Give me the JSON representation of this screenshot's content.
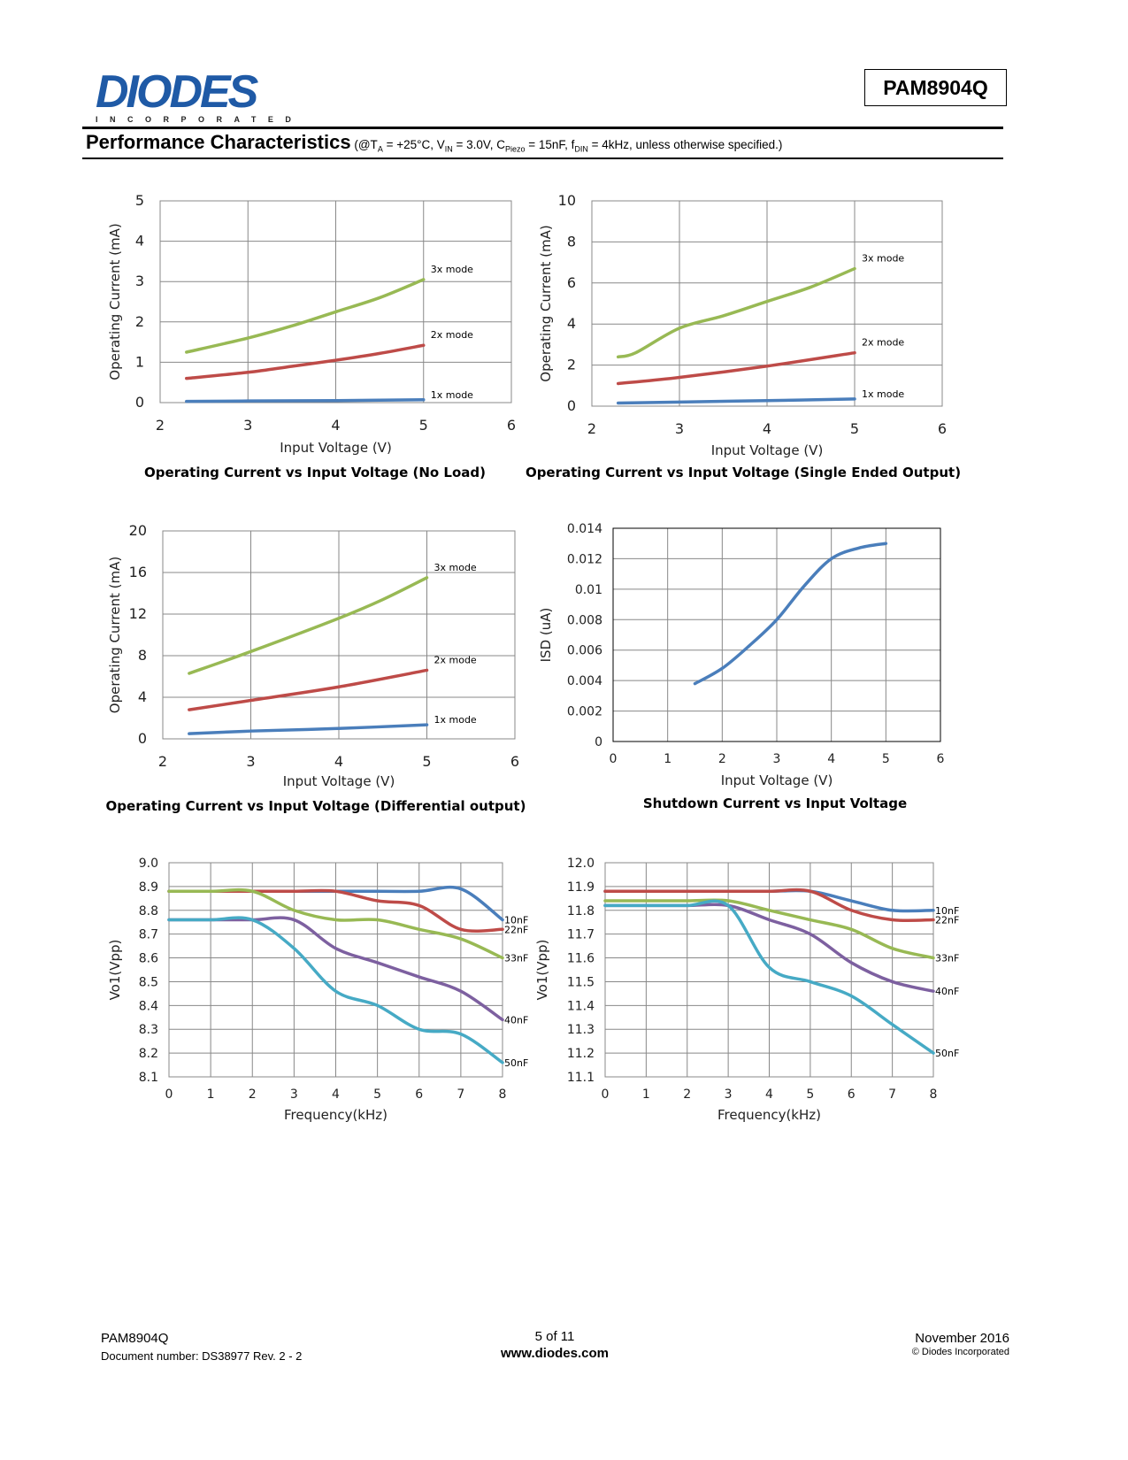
{
  "header": {
    "logo_text": "DIODES",
    "logo_subtext": "INCORPORATED",
    "part_number": "PAM8904Q",
    "section_title": "Performance Characteristics",
    "conditions": {
      "open": "(@T",
      "ta_sub": "A",
      "ta": " = +25°C, V",
      "vin_sub": "IN",
      "vin": " = 3.0V, C",
      "c_sub": "Piezo",
      "c": " = 15nF, f",
      "f_sub": "DIN",
      "f": " = 4kHz, unless otherwise specified.)"
    }
  },
  "colors": {
    "blue": "#4a7ebb",
    "red": "#be4b48",
    "green": "#98b954",
    "purple": "#7d60a0",
    "cyan": "#46aac5",
    "grid": "#888888"
  },
  "chart_data": [
    {
      "type": "line",
      "title": "Operating Current vs Input Voltage (No Load)",
      "xlabel": "Input Voltage (V)",
      "ylabel": "Operating Current (mA)",
      "xlim": [
        2,
        6
      ],
      "ylim": [
        0,
        5
      ],
      "xticks": [
        "2",
        "3",
        "4",
        "5",
        "6"
      ],
      "yticks": [
        "0",
        "1",
        "2",
        "3",
        "4",
        "5"
      ],
      "grid": true,
      "series": [
        {
          "name": "1x mode",
          "color": "#4a7ebb",
          "x": [
            2.3,
            3,
            4,
            5
          ],
          "y": [
            0.03,
            0.04,
            0.05,
            0.07
          ]
        },
        {
          "name": "2x mode",
          "color": "#be4b48",
          "x": [
            2.3,
            3,
            3.5,
            4,
            4.5,
            5
          ],
          "y": [
            0.6,
            0.75,
            0.9,
            1.05,
            1.22,
            1.42
          ]
        },
        {
          "name": "3x mode",
          "color": "#98b954",
          "x": [
            2.3,
            3,
            3.5,
            4,
            4.5,
            5
          ],
          "y": [
            1.25,
            1.6,
            1.9,
            2.25,
            2.6,
            3.05
          ]
        }
      ]
    },
    {
      "type": "line",
      "title": "Operating Current vs Input Voltage (Single Ended Output)",
      "xlabel": "Input Voltage (V)",
      "ylabel": "Operating Current (mA)",
      "xlim": [
        2,
        6
      ],
      "ylim": [
        0,
        10
      ],
      "xticks": [
        "2",
        "3",
        "4",
        "5",
        "6"
      ],
      "yticks": [
        "0",
        "2",
        "4",
        "6",
        "8",
        "10"
      ],
      "grid": true,
      "series": [
        {
          "name": "1x mode",
          "color": "#4a7ebb",
          "x": [
            2.3,
            3,
            4,
            5
          ],
          "y": [
            0.15,
            0.2,
            0.27,
            0.35
          ]
        },
        {
          "name": "2x mode",
          "color": "#be4b48",
          "x": [
            2.3,
            3,
            4,
            5
          ],
          "y": [
            1.1,
            1.4,
            1.95,
            2.6
          ]
        },
        {
          "name": "3x mode",
          "color": "#98b954",
          "x": [
            2.3,
            2.5,
            3,
            3.5,
            4,
            4.5,
            5
          ],
          "y": [
            2.4,
            2.6,
            3.8,
            4.4,
            5.1,
            5.8,
            6.7
          ]
        }
      ]
    },
    {
      "type": "line",
      "title": "Operating Current vs Input Voltage (Differential output)",
      "xlabel": "Input Voltage (V)",
      "ylabel": "Operating Current (mA)",
      "xlim": [
        2,
        6
      ],
      "ylim": [
        0,
        20
      ],
      "xticks": [
        "2",
        "3",
        "4",
        "5",
        "6"
      ],
      "yticks": [
        "0",
        "4",
        "8",
        "12",
        "16",
        "20"
      ],
      "grid": true,
      "series": [
        {
          "name": "1x mode",
          "color": "#4a7ebb",
          "x": [
            2.3,
            3,
            4,
            5
          ],
          "y": [
            0.5,
            0.75,
            1.0,
            1.35
          ]
        },
        {
          "name": "2x mode",
          "color": "#be4b48",
          "x": [
            2.3,
            3,
            4,
            5
          ],
          "y": [
            2.8,
            3.7,
            5.0,
            6.6
          ]
        },
        {
          "name": "3x mode",
          "color": "#98b954",
          "x": [
            2.3,
            3,
            4,
            4.5,
            5
          ],
          "y": [
            6.3,
            8.4,
            11.6,
            13.4,
            15.5
          ]
        }
      ]
    },
    {
      "type": "line",
      "title": "Shutdown Current vs Input Voltage",
      "xlabel": "Input Voltage (V)",
      "ylabel": "ISD (uA)",
      "xlim": [
        0,
        6
      ],
      "ylim": [
        0,
        0.014
      ],
      "xticks": [
        "0",
        "1",
        "2",
        "3",
        "4",
        "5",
        "6"
      ],
      "yticks": [
        "0",
        "0.002",
        "0.004",
        "0.006",
        "0.008",
        "0.01",
        "0.012",
        "0.014"
      ],
      "grid": true,
      "series": [
        {
          "color": "#4a7ebb",
          "x": [
            1.5,
            2,
            2.5,
            3,
            3.5,
            4,
            4.5,
            5
          ],
          "y": [
            0.0038,
            0.0048,
            0.0063,
            0.008,
            0.0102,
            0.012,
            0.0127,
            0.013
          ]
        }
      ]
    },
    {
      "type": "line",
      "title": "",
      "xlabel": "Frequency(kHz)",
      "ylabel": "Vo1(Vpp)",
      "xlim": [
        0,
        8
      ],
      "ylim": [
        8.1,
        9.0
      ],
      "xticks": [
        "0",
        "1",
        "2",
        "3",
        "4",
        "5",
        "6",
        "7",
        "8"
      ],
      "yticks": [
        "8.1",
        "8.2",
        "8.3",
        "8.4",
        "8.5",
        "8.6",
        "8.7",
        "8.8",
        "8.9",
        "9.0"
      ],
      "grid": true,
      "series": [
        {
          "name": "10nF",
          "color": "#4a7ebb",
          "x": [
            0,
            1,
            2,
            3,
            4,
            5,
            6,
            7,
            8
          ],
          "y": [
            8.88,
            8.88,
            8.88,
            8.88,
            8.88,
            8.88,
            8.88,
            8.89,
            8.76
          ]
        },
        {
          "name": "22nF",
          "color": "#be4b48",
          "x": [
            0,
            1,
            2,
            3,
            4,
            5,
            6,
            7,
            8
          ],
          "y": [
            8.88,
            8.88,
            8.88,
            8.88,
            8.88,
            8.84,
            8.82,
            8.72,
            8.72
          ]
        },
        {
          "name": "33nF",
          "color": "#98b954",
          "x": [
            0,
            1,
            2,
            3,
            4,
            5,
            6,
            7,
            8
          ],
          "y": [
            8.88,
            8.88,
            8.88,
            8.8,
            8.76,
            8.76,
            8.72,
            8.68,
            8.6
          ]
        },
        {
          "name": "40nF",
          "color": "#7d60a0",
          "x": [
            0,
            1,
            2,
            3,
            4,
            5,
            6,
            7,
            8
          ],
          "y": [
            8.76,
            8.76,
            8.76,
            8.76,
            8.64,
            8.58,
            8.52,
            8.46,
            8.34
          ]
        },
        {
          "name": "50nF",
          "color": "#46aac5",
          "x": [
            0,
            1,
            2,
            3,
            4,
            5,
            6,
            7,
            8
          ],
          "y": [
            8.76,
            8.76,
            8.76,
            8.64,
            8.46,
            8.4,
            8.3,
            8.28,
            8.16
          ]
        }
      ]
    },
    {
      "type": "line",
      "title": "",
      "xlabel": "Frequency(kHz)",
      "ylabel": "Vo1(Vpp)",
      "xlim": [
        0,
        8
      ],
      "ylim": [
        11.1,
        12.0
      ],
      "xticks": [
        "0",
        "1",
        "2",
        "3",
        "4",
        "5",
        "6",
        "7",
        "8"
      ],
      "yticks": [
        "11.1",
        "11.2",
        "11.3",
        "11.4",
        "11.5",
        "11.6",
        "11.7",
        "11.8",
        "11.9",
        "12.0"
      ],
      "grid": true,
      "series": [
        {
          "name": "10nF",
          "color": "#4a7ebb",
          "x": [
            0,
            1,
            2,
            3,
            4,
            5,
            6,
            7,
            8
          ],
          "y": [
            11.88,
            11.88,
            11.88,
            11.88,
            11.88,
            11.88,
            11.84,
            11.8,
            11.8
          ]
        },
        {
          "name": "22nF",
          "color": "#be4b48",
          "x": [
            0,
            1,
            2,
            3,
            4,
            5,
            6,
            7,
            8
          ],
          "y": [
            11.88,
            11.88,
            11.88,
            11.88,
            11.88,
            11.88,
            11.8,
            11.76,
            11.76
          ]
        },
        {
          "name": "33nF",
          "color": "#98b954",
          "x": [
            0,
            1,
            2,
            3,
            4,
            5,
            6,
            7,
            8
          ],
          "y": [
            11.84,
            11.84,
            11.84,
            11.84,
            11.8,
            11.76,
            11.72,
            11.64,
            11.6
          ]
        },
        {
          "name": "40nF",
          "color": "#7d60a0",
          "x": [
            0,
            1,
            2,
            3,
            4,
            5,
            6,
            7,
            8
          ],
          "y": [
            11.82,
            11.82,
            11.82,
            11.82,
            11.76,
            11.7,
            11.58,
            11.5,
            11.46
          ]
        },
        {
          "name": "50nF",
          "color": "#46aac5",
          "x": [
            0,
            1,
            2,
            3,
            4,
            5,
            6,
            7,
            8
          ],
          "y": [
            11.82,
            11.82,
            11.82,
            11.82,
            11.56,
            11.5,
            11.44,
            11.32,
            11.2
          ]
        }
      ]
    }
  ],
  "footer": {
    "part_number": "PAM8904Q",
    "document": "Document number: DS38977  Rev. 2 - 2",
    "page": "5 of 11",
    "website": "www.diodes.com",
    "date": "November 2016",
    "copyright": "© Diodes Incorporated"
  }
}
